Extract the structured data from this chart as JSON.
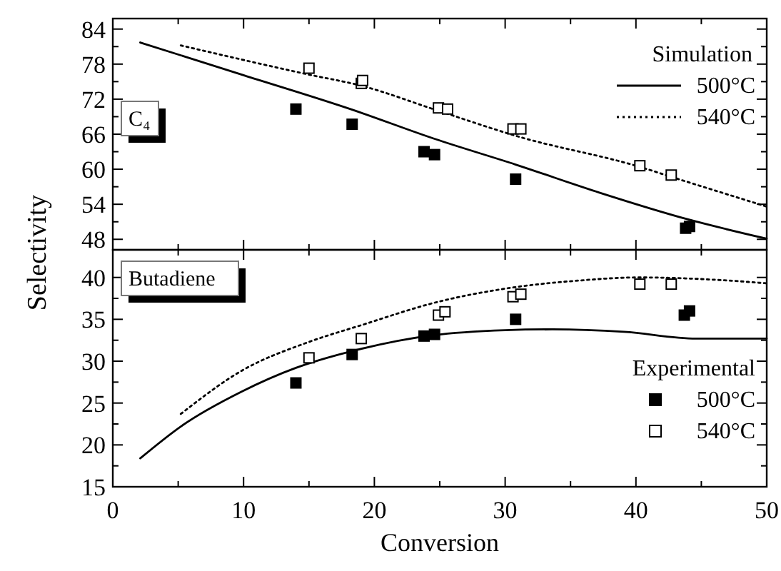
{
  "chart_data": [
    {
      "type": "line",
      "ylabel": "Selectivity",
      "legend_title": "Simulation",
      "legend": "top right",
      "tick_labels": "y",
      "annotations": [
        "C₄"
      ],
      "xlim": [
        0,
        50
      ],
      "xticks": [
        0,
        {
          "value": 5,
          "label": null
        },
        10,
        {
          "value": 15,
          "label": null
        },
        20,
        {
          "value": 25,
          "label": null
        },
        30,
        {
          "value": 35,
          "label": null
        },
        40,
        {
          "value": 45,
          "label": null
        },
        50
      ],
      "ylim": [
        46.2,
        85.8
      ],
      "yticks": [
        48,
        {
          "value": 51,
          "label": null
        },
        54,
        {
          "value": 57,
          "label": null
        },
        60,
        {
          "value": 63,
          "label": null
        },
        66,
        {
          "value": 69,
          "label": null
        },
        72,
        {
          "value": 75,
          "label": null
        },
        78,
        {
          "value": 81,
          "label": null
        },
        84
      ],
      "series": [
        {
          "name": "500°C",
          "color": "#000000",
          "line_style": "solid",
          "marker": "none",
          "x": [
            2.1,
            10,
            18.3,
            24.6,
            30.8,
            37.2,
            44,
            50
          ],
          "values": [
            81.7,
            76.1,
            70.2,
            65.2,
            60.8,
            56.0,
            51.4,
            48.1
          ]
        },
        {
          "name": "540°C",
          "color": "#000000",
          "line_style": "dotted",
          "marker": "none",
          "x": [
            5.2,
            15,
            19,
            24.9,
            31,
            40.3,
            42.7,
            50
          ],
          "values": [
            81.2,
            76.2,
            74.3,
            70.0,
            65.6,
            60.4,
            58.7,
            53.6
          ]
        },
        {
          "type": "scatter",
          "color": "#000000",
          "marker": "square",
          "x": [
            14.0,
            18.3,
            23.8,
            24.6,
            30.8,
            43.8,
            44.1
          ],
          "values": [
            70.3,
            67.7,
            63.0,
            62.5,
            58.3,
            49.9,
            50.2
          ]
        },
        {
          "type": "scatter",
          "color": "#ffffff",
          "marker": "square",
          "x": [
            15.0,
            19.0,
            19.1,
            24.9,
            25.6,
            30.6,
            31.2,
            40.3,
            42.7
          ],
          "values": [
            77.3,
            74.7,
            75.2,
            70.5,
            70.3,
            66.9,
            66.9,
            60.6,
            59.0
          ]
        }
      ]
    },
    {
      "type": "line",
      "xlabel": "Conversion",
      "legend_title": "Experimental",
      "legend": "bottom right",
      "annotations": [
        "Butadiene"
      ],
      "xlim": [
        0,
        50
      ],
      "xticks": [
        0,
        {
          "value": 5,
          "label": null
        },
        10,
        {
          "value": 15,
          "label": null
        },
        20,
        {
          "value": 25,
          "label": null
        },
        30,
        {
          "value": 35,
          "label": null
        },
        40,
        {
          "value": 45,
          "label": null
        },
        50
      ],
      "ylim": [
        15,
        43.3
      ],
      "yticks": [
        15,
        {
          "value": 17.5,
          "label": null
        },
        20,
        {
          "value": 22.5,
          "label": null
        },
        25,
        {
          "value": 27.5,
          "label": null
        },
        30,
        {
          "value": 32.5,
          "label": null
        },
        35,
        {
          "value": 37.5,
          "label": null
        },
        40
      ],
      "series": [
        {
          "color": "#000000",
          "line_style": "solid",
          "marker": "none",
          "x": [
            2.1,
            5.2,
            9.9,
            14.0,
            18.3,
            24.5,
            30,
            33.6,
            39.1,
            44.6,
            50
          ],
          "values": [
            18.4,
            22.2,
            26.4,
            29.2,
            31.2,
            33.1,
            33.7,
            33.8,
            33.5,
            32.7,
            32.7
          ]
        },
        {
          "color": "#000000",
          "line_style": "dotted",
          "marker": "none",
          "x": [
            5.2,
            9.9,
            15.0,
            19,
            24.9,
            30.6,
            35.4,
            40.3,
            46.3,
            50
          ],
          "values": [
            23.7,
            28.9,
            32.3,
            34.3,
            37.1,
            38.8,
            39.6,
            40.0,
            39.7,
            39.3
          ]
        },
        {
          "name": "500°C",
          "type": "scatter",
          "color": "#000000",
          "marker": "square",
          "x": [
            14.0,
            18.3,
            23.8,
            24.6,
            30.8,
            43.7,
            44.1
          ],
          "values": [
            27.4,
            30.8,
            33.0,
            33.2,
            35.0,
            35.5,
            36.0
          ]
        },
        {
          "name": "540°C",
          "type": "scatter",
          "color": "#ffffff",
          "marker": "square",
          "x": [
            15.0,
            19.0,
            24.9,
            25.4,
            30.6,
            31.2,
            40.3,
            42.7
          ],
          "values": [
            30.4,
            32.7,
            35.5,
            35.9,
            37.7,
            38.0,
            39.2,
            39.2
          ]
        }
      ]
    }
  ]
}
